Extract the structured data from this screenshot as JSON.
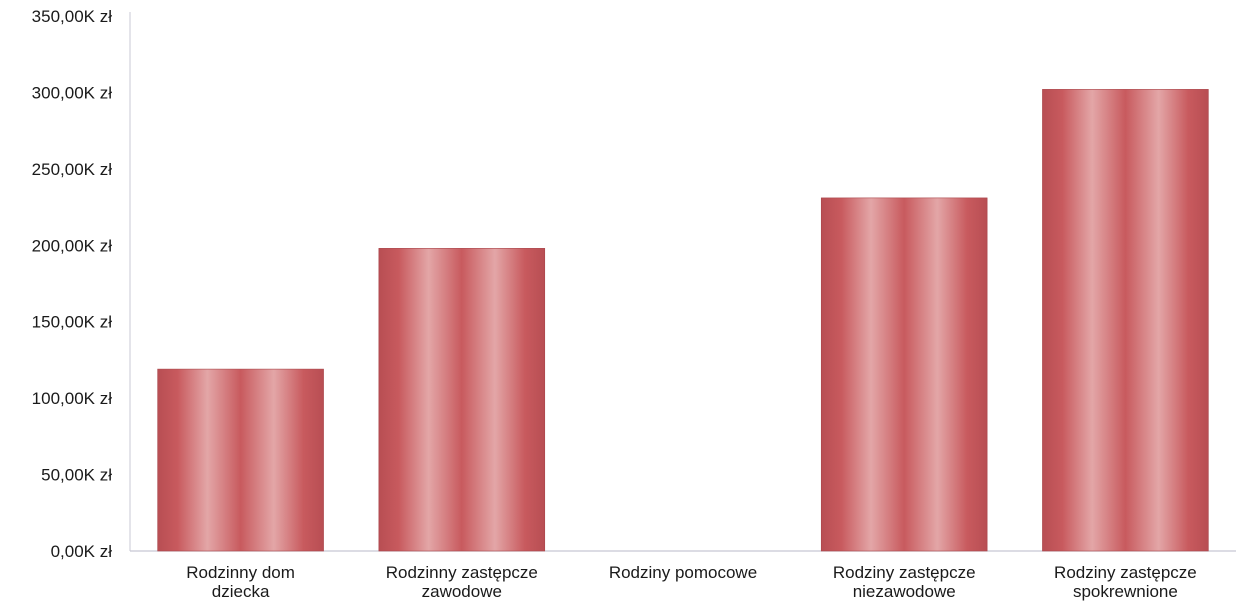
{
  "chart_data": {
    "type": "bar",
    "title": "",
    "xlabel": "",
    "ylabel": "",
    "categories": [
      [
        "Rodzinny dom",
        "dziecka"
      ],
      [
        "Rodzinny zastępcze",
        "zawodowe"
      ],
      [
        "Rodziny pomocowe"
      ],
      [
        "Rodziny zastępcze",
        "niezawodowe"
      ],
      [
        "Rodziny zastępcze",
        "spokrewnione"
      ]
    ],
    "values": [
      119000,
      198000,
      0,
      231000,
      302000
    ],
    "ylim": [
      0,
      350000
    ],
    "yticks": [
      0,
      50000,
      100000,
      150000,
      200000,
      250000,
      300000,
      350000
    ],
    "ytick_labels": [
      "0,00K zł",
      "50,00K zł",
      "100,00K zł",
      "150,00K zł",
      "200,00K zł",
      "250,00K zł",
      "300,00K zł",
      "350,00K zł"
    ],
    "grid": false,
    "legend": "none",
    "colors": {
      "bar_mid": "#c85a5e",
      "bar_light": "#e3a6a7",
      "bar_dark": "#b84e53",
      "axis": "#c8c8d4"
    }
  }
}
